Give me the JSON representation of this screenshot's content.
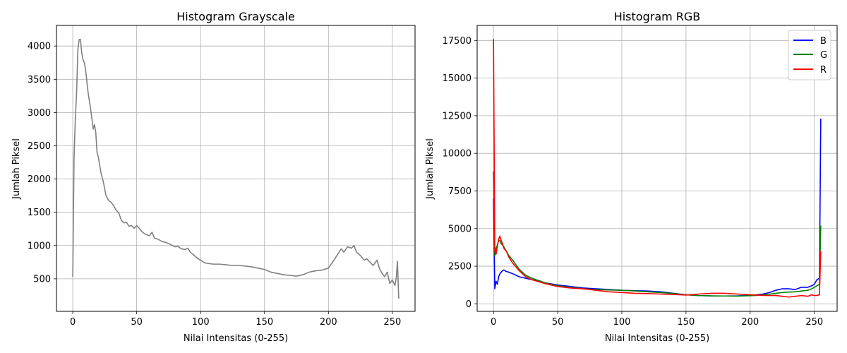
{
  "chart_data": [
    {
      "type": "line",
      "title": "Histogram Grayscale",
      "xlabel": "Nilai Intensitas (0-255)",
      "ylabel": "Jumlah Piksel",
      "xlim": [
        -12.75,
        267.75
      ],
      "ylim": [
        10,
        4310
      ],
      "xticks": [
        0,
        50,
        100,
        150,
        200,
        250
      ],
      "yticks": [
        500,
        1000,
        1500,
        2000,
        2500,
        3000,
        3500,
        4000
      ],
      "grid": true,
      "series": [
        {
          "name": "Grayscale",
          "color": "#808080",
          "x": [
            0,
            1,
            2,
            3,
            4,
            5,
            6,
            7,
            8,
            9,
            10,
            12,
            14,
            16,
            17,
            18,
            19,
            20,
            22,
            24,
            26,
            28,
            30,
            32,
            34,
            36,
            38,
            40,
            42,
            44,
            46,
            48,
            50,
            52,
            54,
            56,
            58,
            60,
            62,
            64,
            66,
            68,
            70,
            72,
            75,
            78,
            80,
            82,
            85,
            88,
            90,
            92,
            95,
            98,
            100,
            103,
            106,
            110,
            115,
            120,
            125,
            130,
            135,
            140,
            145,
            150,
            155,
            160,
            165,
            170,
            175,
            180,
            185,
            190,
            195,
            200,
            205,
            210,
            212,
            215,
            218,
            220,
            222,
            225,
            228,
            230,
            232,
            235,
            238,
            240,
            242,
            244,
            246,
            248,
            250,
            252,
            253,
            254,
            255
          ],
          "y": [
            530,
            2300,
            2900,
            3300,
            3950,
            4100,
            4100,
            3900,
            3800,
            3750,
            3650,
            3300,
            3050,
            2750,
            2820,
            2700,
            2400,
            2330,
            2100,
            1950,
            1750,
            1680,
            1650,
            1600,
            1530,
            1490,
            1380,
            1340,
            1350,
            1290,
            1300,
            1260,
            1300,
            1260,
            1210,
            1180,
            1160,
            1150,
            1200,
            1110,
            1100,
            1080,
            1060,
            1050,
            1030,
            1000,
            980,
            990,
            950,
            940,
            960,
            900,
            850,
            800,
            780,
            740,
            730,
            720,
            720,
            710,
            700,
            700,
            690,
            680,
            660,
            640,
            600,
            580,
            560,
            550,
            540,
            560,
            600,
            620,
            630,
            660,
            800,
            950,
            900,
            980,
            960,
            1000,
            900,
            850,
            780,
            800,
            760,
            700,
            780,
            650,
            580,
            530,
            600,
            430,
            480,
            400,
            500,
            760,
            200
          ]
        }
      ]
    },
    {
      "type": "line",
      "title": "Histogram RGB",
      "xlabel": "Nilai Intensitas (0-255)",
      "ylabel": "Jumlah Piksel",
      "xlim": [
        -12.75,
        267.75
      ],
      "ylim": [
        -500,
        18500
      ],
      "xticks": [
        0,
        50,
        100,
        150,
        200,
        250
      ],
      "yticks": [
        0,
        2500,
        5000,
        7500,
        10000,
        12500,
        15000,
        17500
      ],
      "grid": true,
      "legend": {
        "position": "top-right",
        "entries": [
          "B",
          "G",
          "R"
        ]
      },
      "series": [
        {
          "name": "B",
          "color": "#0000ff",
          "x": [
            0,
            1,
            2,
            3,
            4,
            5,
            6,
            7,
            8,
            10,
            12,
            15,
            20,
            25,
            30,
            40,
            50,
            60,
            70,
            80,
            90,
            100,
            110,
            120,
            130,
            140,
            150,
            160,
            170,
            180,
            190,
            200,
            205,
            210,
            215,
            220,
            225,
            230,
            235,
            240,
            245,
            248,
            250,
            252,
            254,
            255
          ],
          "y": [
            7000,
            1000,
            1500,
            1300,
            1800,
            2000,
            2100,
            2200,
            2250,
            2150,
            2100,
            2000,
            1800,
            1700,
            1600,
            1400,
            1250,
            1150,
            1050,
            1000,
            950,
            900,
            870,
            850,
            800,
            700,
            600,
            550,
            520,
            520,
            530,
            560,
            600,
            650,
            750,
            900,
            1000,
            1000,
            950,
            1100,
            1100,
            1200,
            1300,
            1600,
            1700,
            12300
          ]
        },
        {
          "name": "G",
          "color": "#008000",
          "x": [
            0,
            1,
            2,
            3,
            4,
            5,
            6,
            7,
            8,
            10,
            12,
            15,
            20,
            25,
            30,
            40,
            50,
            60,
            70,
            80,
            90,
            100,
            110,
            120,
            130,
            140,
            150,
            160,
            170,
            180,
            190,
            200,
            205,
            210,
            215,
            220,
            225,
            230,
            235,
            240,
            245,
            248,
            250,
            252,
            254,
            255
          ],
          "y": [
            8800,
            3200,
            3700,
            3900,
            4200,
            4200,
            4000,
            3900,
            3800,
            3500,
            3200,
            2900,
            2300,
            1900,
            1700,
            1400,
            1200,
            1100,
            1000,
            950,
            920,
            900,
            850,
            800,
            750,
            680,
            600,
            550,
            530,
            520,
            510,
            540,
            560,
            600,
            640,
            700,
            750,
            780,
            800,
            850,
            900,
            1000,
            1100,
            1200,
            1300,
            5200
          ]
        },
        {
          "name": "R",
          "color": "#ff0000",
          "x": [
            0,
            1,
            2,
            3,
            4,
            5,
            6,
            7,
            8,
            10,
            12,
            15,
            20,
            25,
            30,
            40,
            50,
            60,
            70,
            80,
            90,
            100,
            110,
            120,
            130,
            140,
            150,
            160,
            170,
            180,
            190,
            200,
            205,
            210,
            215,
            220,
            225,
            230,
            235,
            240,
            245,
            248,
            250,
            252,
            254,
            255
          ],
          "y": [
            17600,
            3500,
            3300,
            3800,
            4300,
            4500,
            4200,
            4000,
            3700,
            3500,
            3100,
            2700,
            2200,
            1800,
            1600,
            1350,
            1150,
            1050,
            1000,
            900,
            800,
            750,
            700,
            680,
            650,
            620,
            580,
            650,
            700,
            700,
            650,
            600,
            580,
            560,
            550,
            560,
            500,
            450,
            500,
            550,
            500,
            600,
            550,
            560,
            600,
            3500
          ]
        }
      ]
    }
  ]
}
